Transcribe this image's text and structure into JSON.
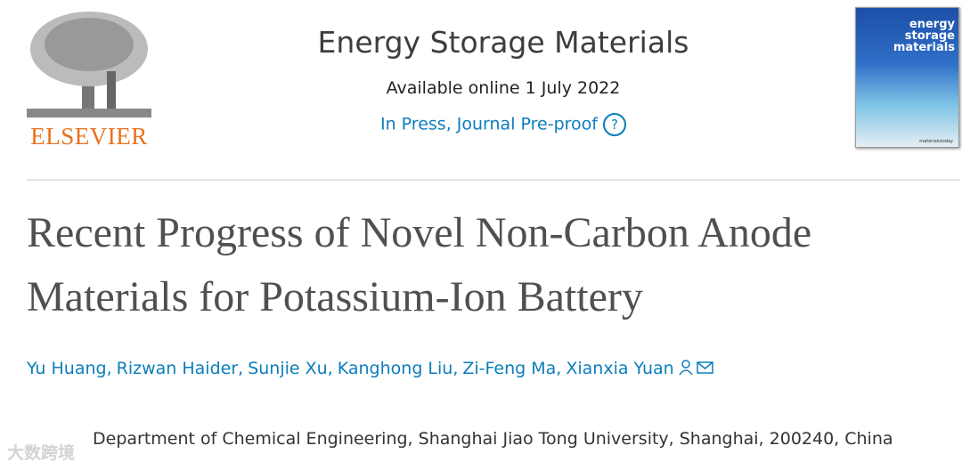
{
  "publisher": {
    "logo_text": "ELSEVIER"
  },
  "journal": {
    "title": "Energy Storage Materials",
    "available": "Available online 1 July 2022",
    "status": "In Press, Journal Pre-proof",
    "help_icon": "?"
  },
  "cover": {
    "title": "energy storage materials",
    "footer": "materialstoday"
  },
  "article": {
    "title": "Recent Progress of Novel Non-Carbon Anode Materials for Potassium-Ion Battery",
    "authors": [
      "Yu Huang",
      "Rizwan Haider",
      "Sunjie Xu",
      "Kanghong Liu",
      "Zi-Feng Ma",
      "Xianxia Yuan"
    ],
    "affiliation": "Department of Chemical Engineering, Shanghai Jiao Tong University, Shanghai, 200240, China"
  },
  "watermark": "大数跨境"
}
